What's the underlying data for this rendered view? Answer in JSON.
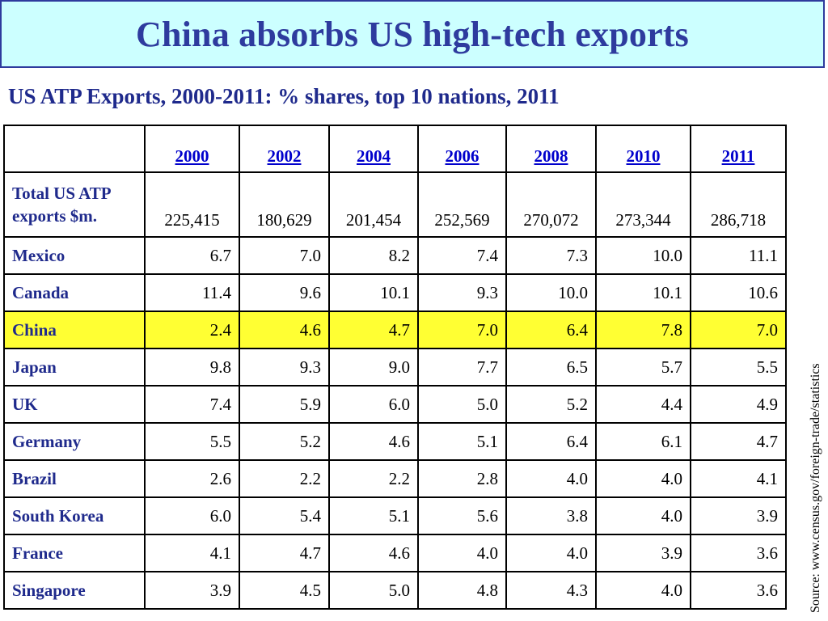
{
  "title": "China absorbs US high-tech exports",
  "subtitle": "US ATP Exports, 2000-2011: % shares, top 10 nations, 2011",
  "colors": {
    "title_background": "#ccffff",
    "title_text": "#2e3b9e",
    "label_text": "#1f2a8c",
    "year_link": "#0000cc",
    "highlight": "#ffff33"
  },
  "table": {
    "years": [
      "2000",
      "2002",
      "2004",
      "2006",
      "2008",
      "2010",
      "2011"
    ],
    "total": {
      "label_line1": "Total US ATP",
      "label_line2": "exports $m.",
      "values": [
        "225,415",
        "180,629",
        "201,454",
        "252,569",
        "270,072",
        "273,344",
        "286,718"
      ]
    },
    "nations": [
      {
        "name": "Mexico",
        "values": [
          "6.7",
          "7.0",
          "8.2",
          "7.4",
          "7.3",
          "10.0",
          "11.1"
        ],
        "highlight": false
      },
      {
        "name": "Canada",
        "values": [
          "11.4",
          "9.6",
          "10.1",
          "9.3",
          "10.0",
          "10.1",
          "10.6"
        ],
        "highlight": false
      },
      {
        "name": "China",
        "values": [
          "2.4",
          "4.6",
          "4.7",
          "7.0",
          "6.4",
          "7.8",
          "7.0"
        ],
        "highlight": true
      },
      {
        "name": "Japan",
        "values": [
          "9.8",
          "9.3",
          "9.0",
          "7.7",
          "6.5",
          "5.7",
          "5.5"
        ],
        "highlight": false
      },
      {
        "name": "UK",
        "values": [
          "7.4",
          "5.9",
          "6.0",
          "5.0",
          "5.2",
          "4.4",
          "4.9"
        ],
        "highlight": false
      },
      {
        "name": "Germany",
        "values": [
          "5.5",
          "5.2",
          "4.6",
          "5.1",
          "6.4",
          "6.1",
          "4.7"
        ],
        "highlight": false
      },
      {
        "name": "Brazil",
        "values": [
          "2.6",
          "2.2",
          "2.2",
          "2.8",
          "4.0",
          "4.0",
          "4.1"
        ],
        "highlight": false
      },
      {
        "name": "South Korea",
        "values": [
          "6.0",
          "5.4",
          "5.1",
          "5.6",
          "3.8",
          "4.0",
          "3.9"
        ],
        "highlight": false
      },
      {
        "name": "France",
        "values": [
          "4.1",
          "4.7",
          "4.6",
          "4.0",
          "4.0",
          "3.9",
          "3.6"
        ],
        "highlight": false
      },
      {
        "name": "Singapore",
        "values": [
          "3.9",
          "4.5",
          "5.0",
          "4.8",
          "4.3",
          "4.0",
          "3.6"
        ],
        "highlight": false
      }
    ]
  },
  "source": "Source: www.census.gov/foreign-trade/statistics"
}
